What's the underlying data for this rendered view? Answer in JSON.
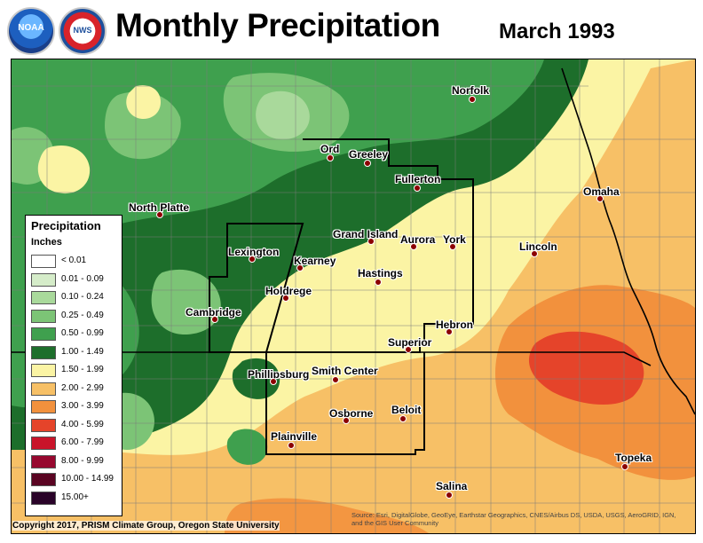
{
  "header": {
    "title": "Monthly Precipitation",
    "subtitle": "March 1993",
    "logos": [
      {
        "name": "noaa-logo",
        "text": "NOAA"
      },
      {
        "name": "nws-logo",
        "text": "NWS"
      }
    ]
  },
  "legend": {
    "title": "Precipitation",
    "units": "Inches",
    "classes": [
      {
        "label": "< 0.01",
        "color": "#ffffff"
      },
      {
        "label": "0.01 - 0.09",
        "color": "#d5ecc9"
      },
      {
        "label": "0.10 - 0.24",
        "color": "#a9d99b"
      },
      {
        "label": "0.25 - 0.49",
        "color": "#7cc476"
      },
      {
        "label": "0.50 - 0.99",
        "color": "#3fa04e"
      },
      {
        "label": "1.00 - 1.49",
        "color": "#1d6e2b"
      },
      {
        "label": "1.50 - 1.99",
        "color": "#fbf4a4"
      },
      {
        "label": "2.00 - 2.99",
        "color": "#f7c066"
      },
      {
        "label": "3.00 - 3.99",
        "color": "#f2913d"
      },
      {
        "label": "4.00 - 5.99",
        "color": "#e5442a"
      },
      {
        "label": "6.00 - 7.99",
        "color": "#c9142a"
      },
      {
        "label": "8.00 - 9.99",
        "color": "#97082f"
      },
      {
        "label": "10.00 - 14.99",
        "color": "#5a0422"
      },
      {
        "label": "15.00+",
        "color": "#2a0329"
      }
    ]
  },
  "cities": [
    {
      "name": "Norfolk"
    },
    {
      "name": "Ord"
    },
    {
      "name": "Greeley"
    },
    {
      "name": "Fullerton"
    },
    {
      "name": "North Platte"
    },
    {
      "name": "Omaha"
    },
    {
      "name": "Grand Island"
    },
    {
      "name": "Aurora"
    },
    {
      "name": "York"
    },
    {
      "name": "Lincoln"
    },
    {
      "name": "Lexington"
    },
    {
      "name": "Kearney"
    },
    {
      "name": "Hastings"
    },
    {
      "name": "Holdrege"
    },
    {
      "name": "Cambridge"
    },
    {
      "name": "Hebron"
    },
    {
      "name": "Superior"
    },
    {
      "name": "Phillipsburg"
    },
    {
      "name": "Smith Center"
    },
    {
      "name": "Osborne"
    },
    {
      "name": "Beloit"
    },
    {
      "name": "Plainville"
    },
    {
      "name": "Topeka"
    },
    {
      "name": "Salina"
    }
  ],
  "footer": {
    "copyright": "Copyright 2017, PRISM Climate Group, Oregon State University",
    "attribution": "Source: Esri, DigitalGlobe, GeoEye, Earthstar Geographics, CNES/Airbus DS, USDA, USGS, AeroGRID, IGN, and the GIS User Community"
  }
}
